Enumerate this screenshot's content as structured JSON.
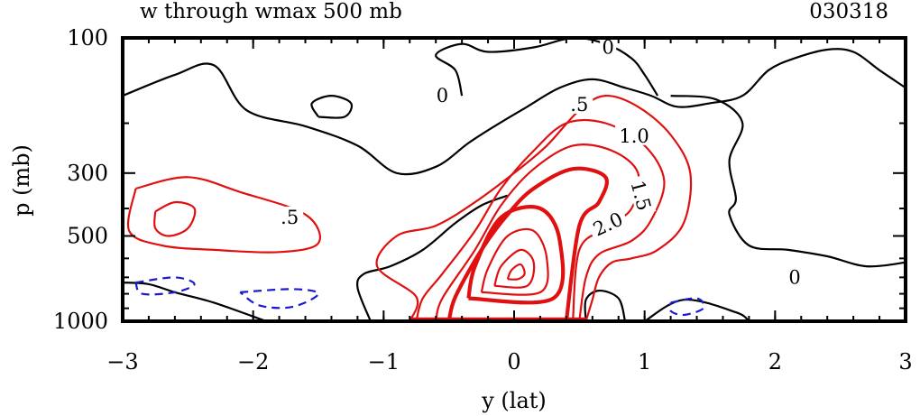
{
  "chart_data": {
    "type": "contour",
    "title": "w through wmax 500 mb",
    "date_label": "030318",
    "xlabel": "y (lat)",
    "ylabel": "p (mb)",
    "xlim": [
      -3,
      3
    ],
    "ylim": [
      1000,
      100
    ],
    "y_scale": "log (pressure)",
    "x_ticks": [
      -3,
      -2,
      -1,
      0,
      1,
      2,
      3
    ],
    "x_tick_labels": [
      "−3",
      "−2",
      "−1",
      "0",
      "1",
      "2",
      "3"
    ],
    "y_ticks": [
      100,
      300,
      500,
      1000
    ],
    "y_tick_labels": [
      "100",
      "300",
      "500",
      "1000"
    ],
    "contour_levels_labeled": [
      "0",
      ".5",
      "1.0",
      "1.5",
      "2.0"
    ],
    "contours": [
      {
        "level": 0,
        "label": "0",
        "color": "#000000",
        "points": [
          [
            -3.0,
            160
          ],
          [
            -2.6,
            135
          ],
          [
            -2.3,
            125
          ],
          [
            -2.05,
            180
          ],
          [
            -1.6,
            205
          ],
          [
            -1.2,
            240
          ],
          [
            -0.9,
            300
          ],
          [
            -0.6,
            285
          ],
          [
            -0.35,
            235
          ],
          [
            -0.15,
            205
          ],
          [
            0.1,
            175
          ],
          [
            0.35,
            150
          ],
          [
            0.6,
            140
          ],
          [
            0.85,
            150
          ],
          [
            1.05,
            160
          ],
          [
            1.25,
            175
          ],
          [
            1.5,
            170
          ],
          [
            1.75,
            160
          ],
          [
            1.95,
            130
          ],
          [
            2.15,
            118
          ],
          [
            2.4,
            110
          ],
          [
            2.6,
            112
          ],
          [
            2.8,
            130
          ],
          [
            3.0,
            150
          ]
        ]
      },
      {
        "level": 0,
        "label": "0",
        "color": "#000000",
        "points": [
          [
            -0.4,
            160
          ],
          [
            -0.45,
            130
          ],
          [
            -0.6,
            115
          ],
          [
            -0.4,
            105
          ],
          [
            -0.2,
            112
          ],
          [
            0.15,
            108
          ],
          [
            0.45,
            100
          ],
          [
            0.7,
            105
          ],
          [
            0.9,
            118
          ],
          [
            1.0,
            135
          ],
          [
            1.1,
            160
          ]
        ]
      },
      {
        "level": 0,
        "color": "#000000",
        "points": [
          [
            -1.5,
            190
          ],
          [
            -1.55,
            170
          ],
          [
            -1.4,
            160
          ],
          [
            -1.25,
            170
          ],
          [
            -1.3,
            190
          ],
          [
            -1.5,
            190
          ]
        ]
      },
      {
        "level": 0,
        "color": "#000000",
        "points": [
          [
            -1.9,
            1000
          ],
          [
            -2.3,
            860
          ],
          [
            -2.6,
            790
          ],
          [
            -2.8,
            740
          ],
          [
            -3.0,
            730
          ]
        ]
      },
      {
        "level": 0,
        "color": "#000000",
        "points": [
          [
            -1.1,
            1000
          ],
          [
            -1.2,
            760
          ],
          [
            -1.15,
            680
          ],
          [
            -0.95,
            640
          ],
          [
            -0.7,
            560
          ],
          [
            -0.45,
            450
          ],
          [
            -0.25,
            390
          ],
          [
            -0.05,
            360
          ]
        ]
      },
      {
        "level": 0,
        "color": "#000000",
        "points": [
          [
            0.55,
            1000
          ],
          [
            0.55,
            840
          ],
          [
            0.65,
            780
          ],
          [
            0.8,
            830
          ],
          [
            0.85,
            1000
          ]
        ]
      },
      {
        "level": 0,
        "color": "#000000",
        "points": [
          [
            1.0,
            1000
          ],
          [
            1.3,
            840
          ],
          [
            1.7,
            930
          ],
          [
            1.8,
            1000
          ]
        ]
      },
      {
        "level": 0,
        "color": "#000000",
        "points": [
          [
            1.2,
            160
          ],
          [
            1.55,
            165
          ],
          [
            1.75,
            200
          ],
          [
            1.65,
            270
          ],
          [
            1.7,
            370
          ],
          [
            1.65,
            420
          ],
          [
            1.8,
            540
          ],
          [
            2.1,
            560
          ],
          [
            2.4,
            590
          ],
          [
            2.7,
            640
          ],
          [
            3.0,
            620
          ]
        ]
      },
      {
        "level": 0.5,
        "label": ".5",
        "color": "#e01010",
        "points": [
          [
            -2.9,
            340
          ],
          [
            -2.5,
            310
          ],
          [
            -2.1,
            350
          ],
          [
            -1.6,
            420
          ],
          [
            -1.5,
            530
          ],
          [
            -1.8,
            570
          ],
          [
            -2.3,
            560
          ],
          [
            -2.7,
            540
          ],
          [
            -2.95,
            480
          ],
          [
            -2.9,
            340
          ]
        ]
      },
      {
        "level": 0.5,
        "color": "#e01010",
        "points": [
          [
            -2.75,
            410
          ],
          [
            -2.6,
            380
          ],
          [
            -2.45,
            400
          ],
          [
            -2.5,
            470
          ],
          [
            -2.65,
            500
          ],
          [
            -2.75,
            470
          ],
          [
            -2.75,
            410
          ]
        ]
      },
      {
        "level": 0.5,
        "label": ".5",
        "color": "#e01010",
        "points": [
          [
            -0.8,
            1000
          ],
          [
            -0.75,
            820
          ],
          [
            -1.05,
            640
          ],
          [
            -0.9,
            500
          ],
          [
            -0.6,
            460
          ],
          [
            -0.3,
            380
          ],
          [
            0.0,
            300
          ],
          [
            0.25,
            240
          ],
          [
            0.5,
            180
          ],
          [
            0.7,
            160
          ],
          [
            0.95,
            175
          ],
          [
            1.2,
            220
          ],
          [
            1.35,
            300
          ],
          [
            1.3,
            450
          ],
          [
            1.1,
            560
          ],
          [
            0.9,
            600
          ],
          [
            0.75,
            620
          ],
          [
            0.65,
            700
          ],
          [
            0.6,
            840
          ],
          [
            0.55,
            1000
          ]
        ]
      },
      {
        "level": 1.0,
        "label": "1.0",
        "color": "#e01010",
        "points": [
          [
            -0.75,
            1000
          ],
          [
            -0.7,
            830
          ],
          [
            -0.55,
            680
          ],
          [
            -0.3,
            480
          ],
          [
            -0.1,
            340
          ],
          [
            0.15,
            250
          ],
          [
            0.4,
            200
          ],
          [
            0.7,
            200
          ],
          [
            1.0,
            240
          ],
          [
            1.15,
            320
          ],
          [
            1.05,
            440
          ],
          [
            0.9,
            520
          ],
          [
            0.65,
            580
          ],
          [
            0.55,
            700
          ],
          [
            0.5,
            1000
          ]
        ]
      },
      {
        "level": 1.5,
        "label": "1.5",
        "color": "#e01010",
        "points": [
          [
            -0.6,
            1000
          ],
          [
            -0.55,
            830
          ],
          [
            -0.3,
            560
          ],
          [
            -0.1,
            390
          ],
          [
            0.15,
            290
          ],
          [
            0.45,
            240
          ],
          [
            0.75,
            250
          ],
          [
            0.95,
            300
          ],
          [
            0.9,
            400
          ],
          [
            0.7,
            470
          ],
          [
            0.5,
            560
          ],
          [
            0.45,
            1000
          ]
        ]
      },
      {
        "level": 2.0,
        "label": "2.0",
        "color": "#e01010",
        "bold": true,
        "points": [
          [
            -0.5,
            1000
          ],
          [
            -0.45,
            820
          ],
          [
            -0.25,
            560
          ],
          [
            -0.05,
            420
          ],
          [
            0.15,
            340
          ],
          [
            0.45,
            290
          ],
          [
            0.7,
            310
          ],
          [
            0.65,
            380
          ],
          [
            0.5,
            460
          ],
          [
            0.4,
            1000
          ]
        ]
      },
      {
        "level": 2.5,
        "color": "#e01010",
        "bold": true,
        "points": [
          [
            -0.35,
            830
          ],
          [
            -0.3,
            640
          ],
          [
            -0.1,
            430
          ],
          [
            0.2,
            400
          ],
          [
            0.35,
            520
          ],
          [
            0.3,
            830
          ],
          [
            -0.35,
            830
          ]
        ]
      },
      {
        "level": 3.0,
        "color": "#e01010",
        "points": [
          [
            -0.25,
            790
          ],
          [
            -0.2,
            650
          ],
          [
            -0.05,
            500
          ],
          [
            0.15,
            480
          ],
          [
            0.25,
            600
          ],
          [
            0.2,
            790
          ],
          [
            -0.25,
            790
          ]
        ]
      },
      {
        "level": 3.5,
        "color": "#e01010",
        "points": [
          [
            -0.15,
            750
          ],
          [
            -0.1,
            640
          ],
          [
            0.05,
            560
          ],
          [
            0.15,
            620
          ],
          [
            0.1,
            750
          ],
          [
            -0.15,
            750
          ]
        ]
      },
      {
        "level": 4.0,
        "color": "#e01010",
        "points": [
          [
            -0.05,
            710
          ],
          [
            -0.02,
            660
          ],
          [
            0.05,
            630
          ],
          [
            0.08,
            680
          ],
          [
            0.03,
            710
          ],
          [
            -0.05,
            710
          ]
        ]
      },
      {
        "level": 0.5,
        "color": "#e01010",
        "bold": true,
        "points": [
          [
            -0.8,
            985
          ],
          [
            0.55,
            985
          ]
        ]
      },
      {
        "level": -0.5,
        "color": "#1a1ad0",
        "points": [
          [
            -2.9,
            730
          ],
          [
            -2.6,
            700
          ],
          [
            -2.45,
            740
          ],
          [
            -2.6,
            790
          ],
          [
            -2.85,
            800
          ],
          [
            -2.9,
            730
          ]
        ]
      },
      {
        "level": -0.5,
        "color": "#1a1ad0",
        "points": [
          [
            -2.1,
            790
          ],
          [
            -1.7,
            770
          ],
          [
            -1.5,
            800
          ],
          [
            -1.7,
            890
          ],
          [
            -1.95,
            880
          ],
          [
            -2.1,
            790
          ]
        ]
      },
      {
        "level": -0.5,
        "color": "#1a1ad0",
        "points": [
          [
            1.2,
            860
          ],
          [
            1.4,
            830
          ],
          [
            1.45,
            900
          ],
          [
            1.3,
            950
          ],
          [
            1.2,
            920
          ],
          [
            1.2,
            860
          ]
        ]
      }
    ]
  }
}
